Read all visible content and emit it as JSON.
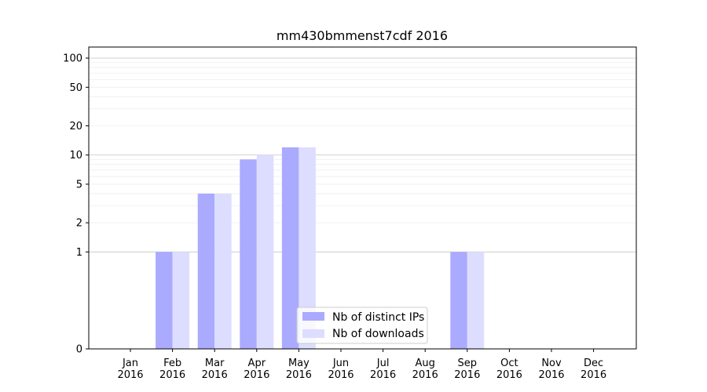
{
  "chart_data": {
    "type": "bar",
    "title": "mm430bmmenst7cdf 2016",
    "xlabel": "",
    "ylabel": "",
    "yscale": "symlog",
    "ylim": [
      0,
      130
    ],
    "yticks": [
      0,
      1,
      2,
      5,
      10,
      20,
      50,
      100
    ],
    "ytick_labels": [
      "0",
      "1",
      "2",
      "5",
      "10",
      "20",
      "50",
      "100"
    ],
    "grid": "horizontal",
    "legend_position": "bottom-center",
    "categories": [
      {
        "month": "Jan",
        "year": "2016"
      },
      {
        "month": "Feb",
        "year": "2016"
      },
      {
        "month": "Mar",
        "year": "2016"
      },
      {
        "month": "Apr",
        "year": "2016"
      },
      {
        "month": "May",
        "year": "2016"
      },
      {
        "month": "Jun",
        "year": "2016"
      },
      {
        "month": "Jul",
        "year": "2016"
      },
      {
        "month": "Aug",
        "year": "2016"
      },
      {
        "month": "Sep",
        "year": "2016"
      },
      {
        "month": "Oct",
        "year": "2016"
      },
      {
        "month": "Nov",
        "year": "2016"
      },
      {
        "month": "Dec",
        "year": "2016"
      }
    ],
    "series": [
      {
        "name": "Nb of distinct IPs",
        "color": "#aaaaff",
        "values": [
          0,
          1,
          4,
          9,
          12,
          0,
          0,
          0,
          1,
          0,
          0,
          0
        ]
      },
      {
        "name": "Nb of downloads",
        "color": "#ddddff",
        "values": [
          0,
          1,
          4,
          10,
          12,
          0,
          0,
          0,
          1,
          0,
          0,
          0
        ]
      }
    ]
  }
}
